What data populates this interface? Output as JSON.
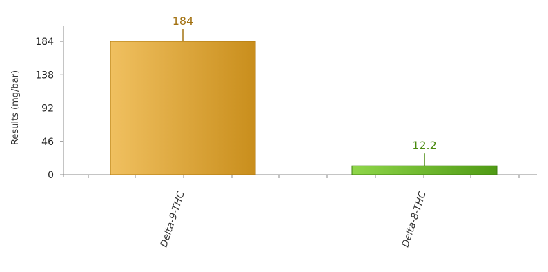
{
  "chart_data": {
    "type": "bar",
    "categories": [
      "Delta-9-THC",
      "Delta-8-THC"
    ],
    "values": [
      184,
      12.2
    ],
    "value_labels": [
      "184",
      "12.2"
    ],
    "ylabel": "Results (mg/bar)",
    "xlabel": "",
    "yticks": [
      0,
      46,
      92,
      138,
      184
    ],
    "ylim": [
      0,
      205
    ],
    "grid": false,
    "legend": "none",
    "colors": {
      "bar_1_light": "#f0c060",
      "bar_1_dark": "#c98e1c",
      "bar_1_stroke": "#b07a10",
      "bar_1_label": "#a37212",
      "bar_2_light": "#8fd64a",
      "bar_2_dark": "#4f9a14",
      "bar_2_stroke": "#3f8010",
      "bar_2_label": "#4a8a10",
      "axis": "#888888"
    }
  }
}
